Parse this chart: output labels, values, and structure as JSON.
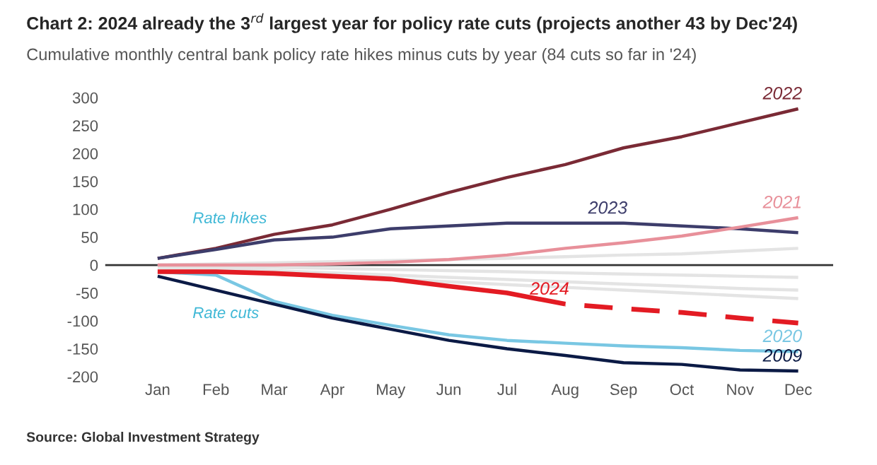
{
  "chart_data": {
    "type": "line",
    "title": "Chart 2: 2024 already the 3$^{rd}$ largest year for policy rate cuts (projects another 43 by Dec'24)",
    "subtitle": "Cumulative monthly central bank policy rate hikes minus cuts by year (84 cuts so far in '24)",
    "categories": [
      "Jan",
      "Feb",
      "Mar",
      "Apr",
      "May",
      "Jun",
      "Jul",
      "Aug",
      "Sep",
      "Oct",
      "Nov",
      "Dec"
    ],
    "series": [
      {
        "color": "#e4e4e4",
        "values": [
          0,
          2,
          4,
          6,
          8,
          10,
          12,
          15,
          18,
          20,
          25,
          30
        ]
      },
      {
        "color": "#e4e4e4",
        "values": [
          0,
          -2,
          -4,
          -6,
          -8,
          -10,
          -12,
          -14,
          -16,
          -18,
          -20,
          -22
        ]
      },
      {
        "color": "#e4e4e4",
        "values": [
          -2,
          -5,
          -10,
          -14,
          -18,
          -22,
          -26,
          -30,
          -34,
          -38,
          -42,
          -45
        ]
      },
      {
        "color": "#e4e4e4",
        "values": [
          -5,
          -10,
          -15,
          -20,
          -25,
          -30,
          -35,
          -40,
          -45,
          -50,
          -55,
          -60
        ]
      },
      {
        "name": "2022",
        "color": "#7a2a35",
        "values": [
          12,
          30,
          55,
          72,
          100,
          130,
          157,
          180,
          210,
          230,
          255,
          280
        ]
      },
      {
        "name": "2023",
        "color": "#3d3d6b",
        "values": [
          12,
          28,
          45,
          50,
          65,
          70,
          75,
          75,
          75,
          70,
          65,
          58
        ]
      },
      {
        "name": "2021",
        "color": "#e8909a",
        "values": [
          0,
          0,
          0,
          2,
          5,
          10,
          18,
          30,
          40,
          52,
          68,
          85
        ]
      },
      {
        "name": "2020",
        "color": "#79c7e3",
        "values": [
          -12,
          -18,
          -65,
          -90,
          -108,
          -125,
          -135,
          -140,
          -145,
          -148,
          -153,
          -155
        ]
      },
      {
        "name": "2009",
        "color": "#0b1a45",
        "values": [
          -20,
          -45,
          -70,
          -95,
          -115,
          -135,
          -150,
          -162,
          -175,
          -178,
          -188,
          -190
        ]
      },
      {
        "name": "2024",
        "color": "#e31b23",
        "values": [
          -12,
          -12,
          -15,
          -20,
          -25,
          -38,
          -50,
          -70,
          null,
          null,
          null,
          null
        ]
      },
      {
        "color": "#e31b23",
        "line_style": "dashed",
        "values": [
          null,
          null,
          null,
          null,
          null,
          null,
          null,
          -70,
          -78,
          -85,
          -95,
          -104
        ]
      }
    ],
    "ylim": [
      -200,
      300
    ],
    "yticks": [
      {
        "value": 300,
        "label": "300"
      },
      {
        "value": 250,
        "label": "250"
      },
      {
        "value": 200,
        "label": "200"
      },
      {
        "value": 150,
        "label": "150"
      },
      {
        "value": 100,
        "label": "100"
      },
      {
        "value": 50,
        "label": "50"
      },
      {
        "value": 0,
        "label": "0"
      },
      {
        "value": -50,
        "label": "-50"
      },
      {
        "value": -100,
        "label": "-100"
      },
      {
        "value": -150,
        "label": "-150"
      },
      {
        "value": -200,
        "label": "-200"
      }
    ],
    "ref_lines": [
      {
        "axis": "y",
        "value": 0,
        "color": "#333333"
      }
    ],
    "annotations": [
      "Rate hikes",
      "Rate cuts",
      "Source: Global Investment Strategy"
    ],
    "grid": false,
    "legend": false
  }
}
